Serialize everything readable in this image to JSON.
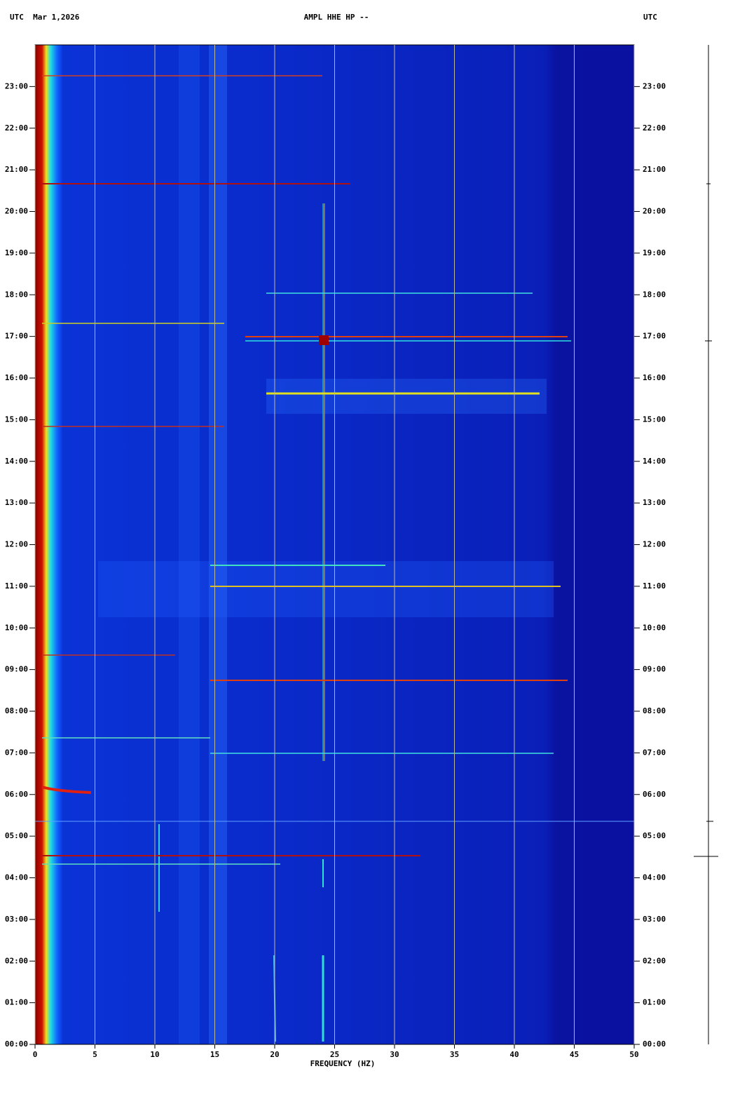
{
  "chart_data": {
    "type": "spectrogram",
    "title": "AMPL HHE HP --",
    "left_header": "UTC  Mar 1,2026",
    "right_header": "UTC",
    "x_label": "FREQUENCY (HZ)",
    "xlim": [
      0,
      50
    ],
    "xticks": [
      0,
      5,
      10,
      15,
      20,
      25,
      30,
      35,
      40,
      45,
      50
    ],
    "ylim": [
      0,
      24
    ],
    "yticks": [
      {
        "value": 0,
        "label": "00:00"
      },
      {
        "value": 1,
        "label": "01:00"
      },
      {
        "value": 2,
        "label": "02:00"
      },
      {
        "value": 3,
        "label": "03:00"
      },
      {
        "value": 4,
        "label": "04:00"
      },
      {
        "value": 5,
        "label": "05:00"
      },
      {
        "value": 6,
        "label": "06:00"
      },
      {
        "value": 7,
        "label": "07:00"
      },
      {
        "value": 8,
        "label": "08:00"
      },
      {
        "value": 9,
        "label": "09:00"
      },
      {
        "value": 10,
        "label": "10:00"
      },
      {
        "value": 11,
        "label": "11:00"
      },
      {
        "value": 12,
        "label": "12:00"
      },
      {
        "value": 13,
        "label": "13:00"
      },
      {
        "value": 14,
        "label": "14:00"
      },
      {
        "value": 15,
        "label": "15:00"
      },
      {
        "value": 16,
        "label": "16:00"
      },
      {
        "value": 17,
        "label": "17:00"
      },
      {
        "value": 18,
        "label": "18:00"
      },
      {
        "value": 19,
        "label": "19:00"
      },
      {
        "value": 20,
        "label": "20:00"
      },
      {
        "value": 21,
        "label": "21:00"
      },
      {
        "value": 22,
        "label": "22:00"
      },
      {
        "value": 23,
        "label": "23:00"
      }
    ],
    "grid": true
  }
}
